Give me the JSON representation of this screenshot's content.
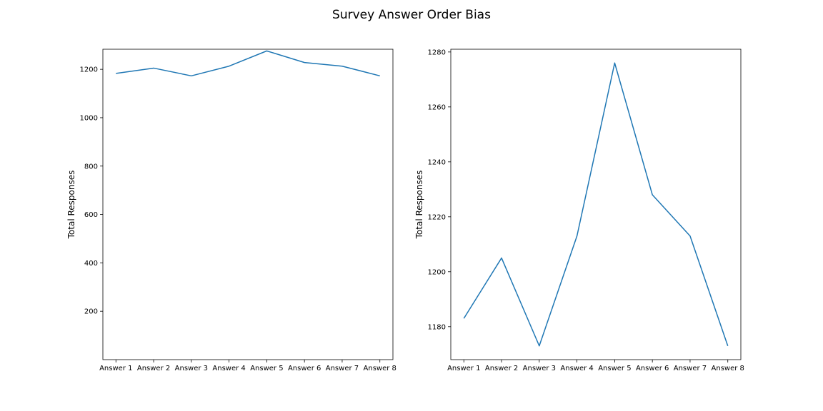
{
  "figure": {
    "title": "Survey Answer Order Bias"
  },
  "colors": {
    "series": "#1f77b4",
    "axes": "#000000",
    "background": "#ffffff"
  },
  "chart_data": [
    {
      "type": "line",
      "title": "",
      "xlabel": "",
      "ylabel": "Total Responses",
      "categories": [
        "Answer 1",
        "Answer 2",
        "Answer 3",
        "Answer 4",
        "Answer 5",
        "Answer 6",
        "Answer 7",
        "Answer 8"
      ],
      "values": [
        1183,
        1205,
        1173,
        1213,
        1276,
        1228,
        1213,
        1173
      ],
      "ylim": [
        0,
        1283
      ],
      "yticks": [
        200,
        400,
        600,
        800,
        1000,
        1200
      ],
      "grid": false,
      "legend": "none"
    },
    {
      "type": "line",
      "title": "",
      "xlabel": "",
      "ylabel": "Total Responses",
      "categories": [
        "Answer 1",
        "Answer 2",
        "Answer 3",
        "Answer 4",
        "Answer 5",
        "Answer 6",
        "Answer 7",
        "Answer 8"
      ],
      "values": [
        1183,
        1205,
        1173,
        1213,
        1276,
        1228,
        1213,
        1173
      ],
      "ylim": [
        1168,
        1281
      ],
      "yticks": [
        1180,
        1200,
        1220,
        1240,
        1260,
        1280
      ],
      "grid": false,
      "legend": "none"
    }
  ]
}
